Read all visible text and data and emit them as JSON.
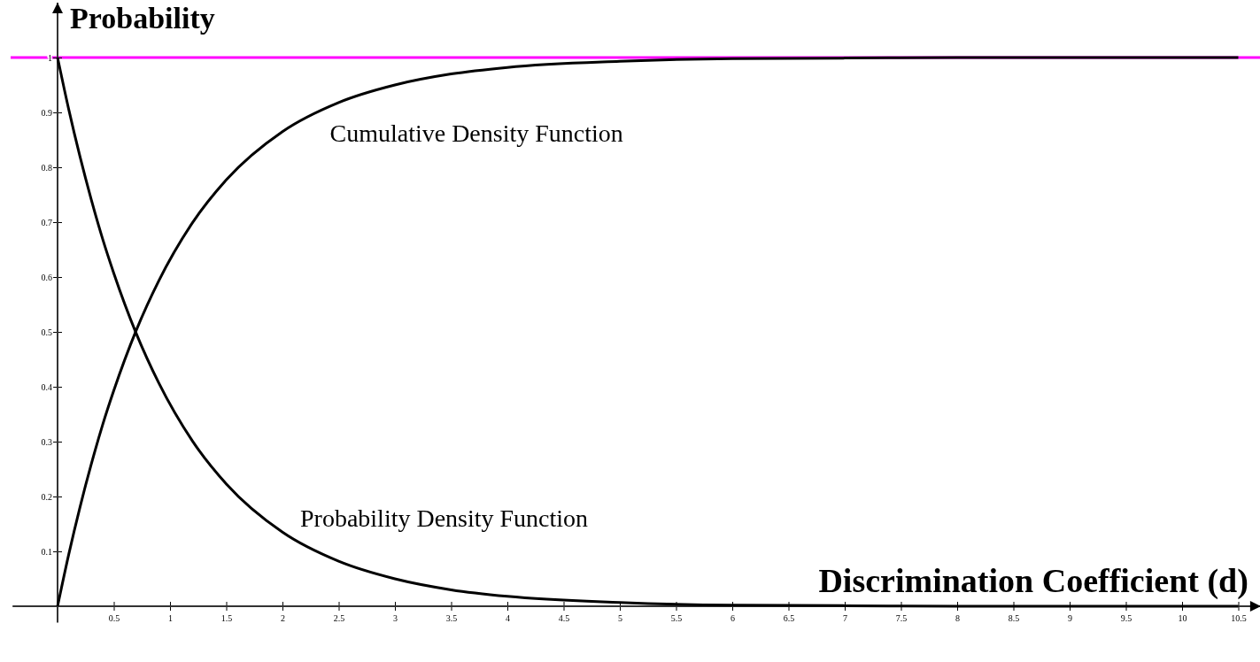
{
  "chart_data": {
    "type": "line",
    "xlabel": "Discrimination Coefficient (d)",
    "ylabel": "Probability",
    "x": [
      0,
      0.1,
      0.2,
      0.3,
      0.4,
      0.5,
      0.7,
      0.9,
      1.2,
      1.5,
      2,
      2.5,
      3,
      3.5,
      4,
      5,
      6,
      7,
      8,
      9,
      10,
      10.5
    ],
    "series": [
      {
        "name": "Cumulative Density Function",
        "color": "#000000",
        "values": [
          0,
          0.095,
          0.181,
          0.259,
          0.33,
          0.393,
          0.503,
          0.593,
          0.699,
          0.777,
          0.865,
          0.918,
          0.95,
          0.97,
          0.982,
          0.993,
          0.998,
          0.999,
          1,
          1,
          1,
          1
        ]
      },
      {
        "name": "Probability Density Function",
        "color": "#000000",
        "values": [
          1,
          0.905,
          0.819,
          0.741,
          0.67,
          0.607,
          0.497,
          0.407,
          0.301,
          0.223,
          0.135,
          0.082,
          0.05,
          0.03,
          0.018,
          0.007,
          0.002,
          0.001,
          0,
          0,
          0,
          0
        ]
      }
    ],
    "xlim": [
      -0.4,
      10.7
    ],
    "ylim": [
      -0.03,
      1.1
    ],
    "xticks": [
      0.5,
      1,
      1.5,
      2,
      2.5,
      3,
      3.5,
      4,
      4.5,
      5,
      5.5,
      6,
      6.5,
      7,
      7.5,
      8,
      8.5,
      9,
      9.5,
      10,
      10.5
    ],
    "yticks": [
      0.1,
      0.2,
      0.3,
      0.4,
      0.5,
      0.6,
      0.7,
      0.8,
      0.9,
      1
    ],
    "ref_lines": [
      {
        "axis": "y",
        "value": 1,
        "color": "#ff00ff"
      }
    ],
    "grid": false,
    "legend": false,
    "marker": "none",
    "line_style": "solid"
  }
}
